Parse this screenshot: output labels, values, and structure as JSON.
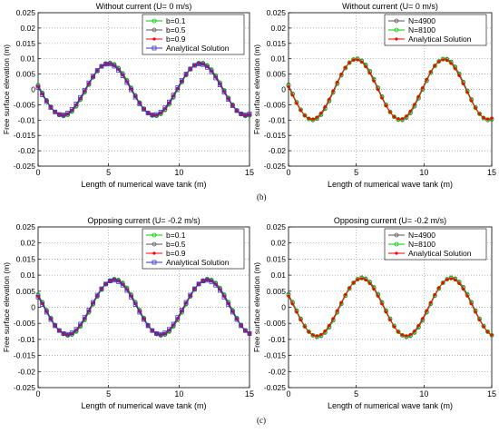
{
  "figure": {
    "captions": [
      "(b)",
      "(c)"
    ]
  },
  "chart_data": [
    {
      "type": "line",
      "title": "Without current (U= 0 m/s)",
      "xlabel": "Length of numerical wave tank (m)",
      "ylabel": "Free surface elevation (m)",
      "xlim": [
        0,
        15
      ],
      "ylim": [
        -0.025,
        0.025
      ],
      "xticks": [
        "0",
        "5",
        "10",
        "15"
      ],
      "yticks": [
        "-0.025",
        "-0.02",
        "-0.015",
        "-0.01",
        "-0.005",
        "0",
        "0.005",
        "0.01",
        "0.015",
        "0.02",
        "0.025"
      ],
      "grid": true,
      "legend_position": "top-right",
      "wave": {
        "amplitude": 0.0087,
        "wavelength": 6.5,
        "crest_x": [
          5,
          11.5
        ],
        "trough_x": [
          1.75,
          8.25,
          14.75
        ]
      },
      "series": [
        {
          "name": "b=0.1",
          "color": "#00cc00",
          "marker": "circle"
        },
        {
          "name": "b=0.5",
          "color": "#555555",
          "marker": "circle"
        },
        {
          "name": "b=0.9",
          "color": "#ff0000",
          "marker": "dot"
        },
        {
          "name": "Analytical Solution",
          "color": "#3333cc",
          "marker": "square"
        }
      ]
    },
    {
      "type": "line",
      "title": "Without current (U= 0 m/s)",
      "xlabel": "Length of numerical wave tank (m)",
      "ylabel": "Free surface elevation (m)",
      "xlim": [
        0,
        15
      ],
      "ylim": [
        -0.025,
        0.025
      ],
      "xticks": [
        "0",
        "5",
        "10",
        "15"
      ],
      "yticks": [
        "-0.025",
        "-0.02",
        "-0.015",
        "-0.01",
        "-0.005",
        "0",
        "0.005",
        "0.01",
        "0.015",
        "0.02",
        "0.025"
      ],
      "grid": true,
      "legend_position": "top-right",
      "wave": {
        "amplitude": 0.01,
        "wavelength": 6.5,
        "crest_x": [
          5,
          11.5
        ],
        "trough_x": [
          1.75,
          8.25,
          14.75
        ]
      },
      "series": [
        {
          "name": "N=4900",
          "color": "#555555",
          "marker": "circle"
        },
        {
          "name": "N=8100",
          "color": "#00cc00",
          "marker": "circle"
        },
        {
          "name": "Analytical Solution",
          "color": "#ff0000",
          "marker": "dot"
        }
      ]
    },
    {
      "type": "line",
      "title": "Opposing current (U= -0.2 m/s)",
      "xlabel": "Length of numerical wave tank (m)",
      "ylabel": "Free surface elevation (m)",
      "xlim": [
        0,
        15
      ],
      "ylim": [
        -0.025,
        0.025
      ],
      "xticks": [
        "0",
        "5",
        "10",
        "15"
      ],
      "yticks": [
        "-0.025",
        "-0.02",
        "-0.015",
        "-0.01",
        "-0.005",
        "0",
        "0.005",
        "0.01",
        "0.015",
        "0.02",
        "0.025"
      ],
      "grid": true,
      "legend_position": "top-right",
      "wave": {
        "amplitude": 0.0088,
        "wavelength": 6.6,
        "crest_x": [
          5.4,
          12
        ],
        "trough_x": [
          2.1,
          8.7
        ]
      },
      "series": [
        {
          "name": "b=0.1",
          "color": "#00cc00",
          "marker": "circle"
        },
        {
          "name": "b=0.5",
          "color": "#555555",
          "marker": "circle"
        },
        {
          "name": "b=0.9",
          "color": "#ff0000",
          "marker": "dot"
        },
        {
          "name": "Analytical Solution",
          "color": "#3333cc",
          "marker": "square"
        }
      ]
    },
    {
      "type": "line",
      "title": "Opposing current (U= -0.2 m/s)",
      "xlabel": "Length of numerical wave tank (m)",
      "ylabel": "Free surface elevation (m)",
      "xlim": [
        0,
        15
      ],
      "ylim": [
        -0.025,
        0.025
      ],
      "xticks": [
        "0",
        "5",
        "10",
        "15"
      ],
      "yticks": [
        "-0.025",
        "-0.02",
        "-0.015",
        "-0.01",
        "-0.005",
        "0",
        "0.005",
        "0.01",
        "0.015",
        "0.02",
        "0.025"
      ],
      "grid": true,
      "legend_position": "top-right",
      "wave": {
        "amplitude": 0.0092,
        "wavelength": 6.6,
        "crest_x": [
          5.4,
          12
        ],
        "trough_x": [
          2.1,
          8.7
        ]
      },
      "series": [
        {
          "name": "N=4900",
          "color": "#555555",
          "marker": "circle"
        },
        {
          "name": "N=8100",
          "color": "#00cc00",
          "marker": "circle"
        },
        {
          "name": "Analytical Solution",
          "color": "#ff0000",
          "marker": "dot"
        }
      ]
    }
  ]
}
